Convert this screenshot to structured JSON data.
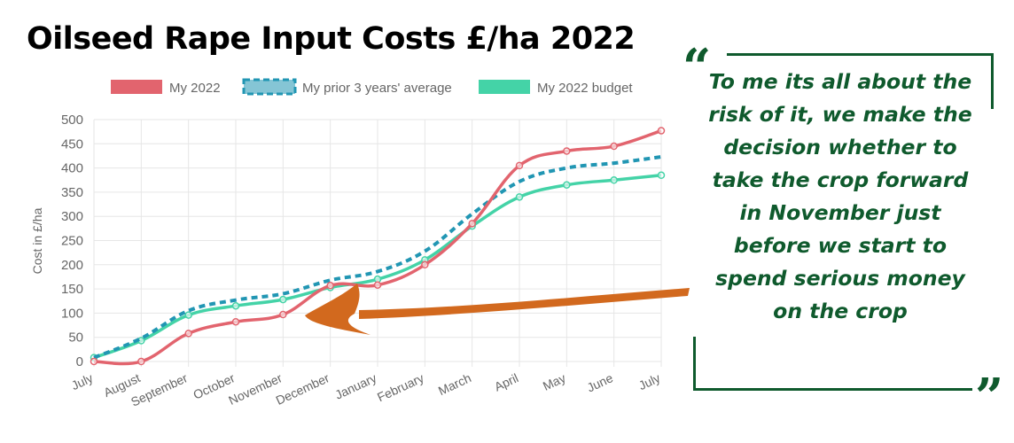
{
  "title": "Oilseed Rape Input Costs £/ha 2022",
  "quote": "To me its all about the risk of it, we make the decision whether to take the crop forward in November just before we start to spend serious money on the crop",
  "quote_marks": {
    "open": "“",
    "close": "”"
  },
  "colors": {
    "my_2022": "#e2646e",
    "prior_avg": "#2196b3",
    "budget": "#44d3a7",
    "quote_green": "#0f5a2d",
    "arrow": "#d2691e"
  },
  "chart_data": {
    "type": "line",
    "title": "Oilseed Rape Input Costs £/ha 2022",
    "xlabel": "",
    "ylabel": "Cost in £/ha",
    "ylim": [
      0,
      500
    ],
    "yticks": [
      0,
      50,
      100,
      150,
      200,
      250,
      300,
      350,
      400,
      450,
      500
    ],
    "grid": true,
    "legend_position": "top",
    "categories": [
      "July",
      "August",
      "September",
      "October",
      "November",
      "December",
      "January",
      "February",
      "March",
      "April",
      "May",
      "June",
      "July"
    ],
    "series": [
      {
        "name": "My 2022",
        "style": "solid",
        "color": "#e2646e",
        "markers": true,
        "values": [
          0,
          0,
          58,
          82,
          97,
          157,
          158,
          200,
          285,
          405,
          435,
          445,
          477
        ]
      },
      {
        "name": "My prior 3 years' average",
        "style": "dashed",
        "color": "#2196b3",
        "markers": false,
        "values": [
          8,
          48,
          105,
          127,
          140,
          168,
          186,
          228,
          305,
          372,
          400,
          410,
          423
        ]
      },
      {
        "name": "My 2022 budget",
        "style": "solid",
        "color": "#44d3a7",
        "markers": true,
        "values": [
          8,
          43,
          96,
          115,
          128,
          153,
          170,
          210,
          280,
          340,
          365,
          375,
          385
        ]
      }
    ]
  }
}
